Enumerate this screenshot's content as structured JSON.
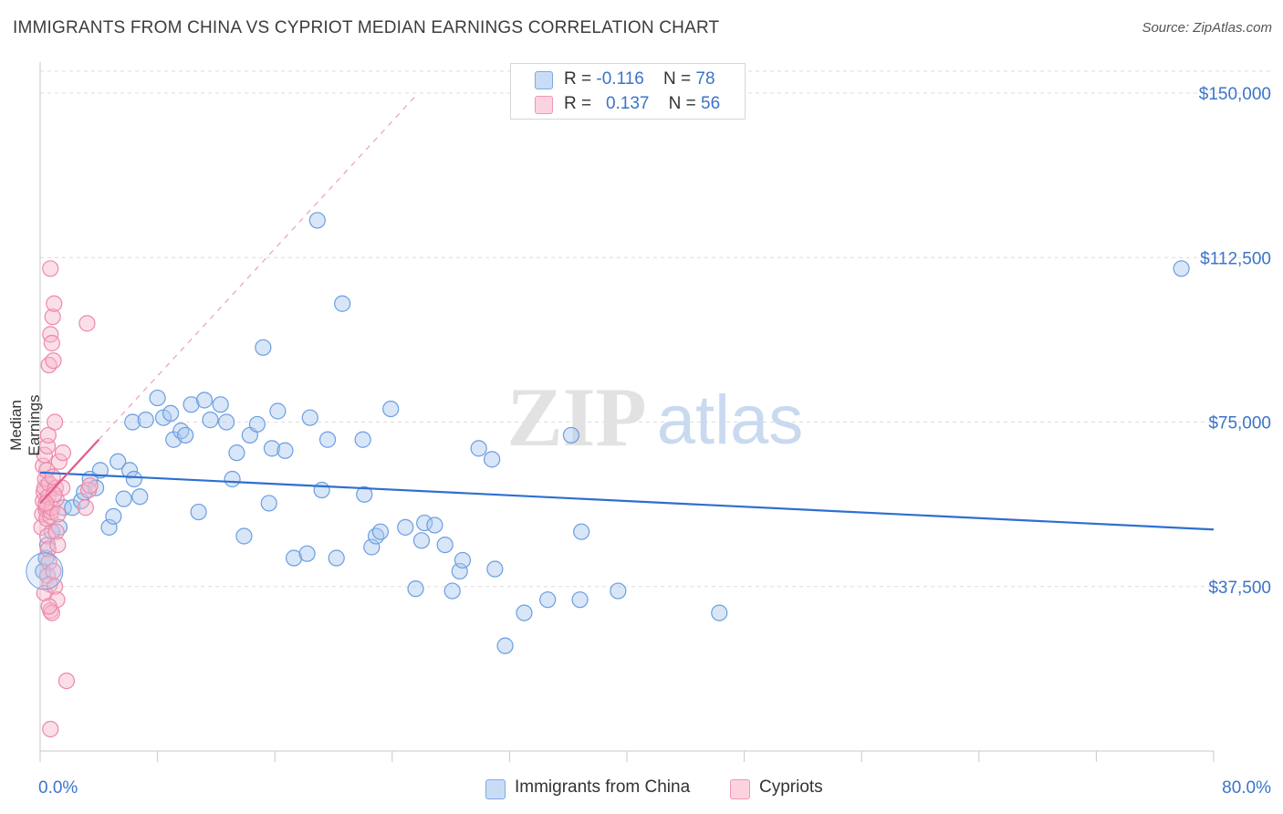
{
  "title": "IMMIGRANTS FROM CHINA VS CYPRIOT MEDIAN EARNINGS CORRELATION CHART",
  "source": "Source: ZipAtlas.com",
  "watermark": {
    "zip": "ZIP",
    "atlas": "atlas"
  },
  "legend": {
    "rows": [
      {
        "r_label": "R =",
        "r_value": "-0.116",
        "n_label": "N =",
        "n_value": "78",
        "color": "#a9c8f0"
      },
      {
        "r_label": "R =",
        "r_value": "0.137",
        "n_label": "N =",
        "n_value": "56",
        "color": "#f6b9cc"
      }
    ]
  },
  "bottom_legend": [
    {
      "label": "Immigrants from China",
      "color": "#a9c8f0"
    },
    {
      "label": "Cypriots",
      "color": "#f6b9cc"
    }
  ],
  "chart_data": {
    "type": "scatter",
    "title": "IMMIGRANTS FROM CHINA VS CYPRIOT MEDIAN EARNINGS CORRELATION CHART",
    "xlabel": "",
    "ylabel": "Median Earnings",
    "xlim": [
      0,
      80
    ],
    "ylim": [
      0,
      155000
    ],
    "x_tick_labels": [
      {
        "value": 0,
        "label": "0.0%"
      },
      {
        "value": 80,
        "label": "80.0%"
      }
    ],
    "y_ticks": [
      {
        "value": 37500,
        "label": "$37,500"
      },
      {
        "value": 75000,
        "label": "$75,000"
      },
      {
        "value": 112500,
        "label": "$112,500"
      },
      {
        "value": 150000,
        "label": "$150,000"
      }
    ],
    "series": [
      {
        "name": "Immigrants from China",
        "color": "#6a9ee0",
        "fill": "#a9c8f0",
        "trend": {
          "x": [
            0,
            80
          ],
          "y": [
            63500,
            50500
          ],
          "style": "solid",
          "color": "#2e6fd0"
        },
        "points": [
          [
            0.2,
            41000
          ],
          [
            0.4,
            44000
          ],
          [
            0.5,
            47000
          ],
          [
            0.8,
            50000
          ],
          [
            1.3,
            51000
          ],
          [
            1.6,
            55500
          ],
          [
            2.2,
            55500
          ],
          [
            2.8,
            57000
          ],
          [
            3.0,
            59000
          ],
          [
            3.4,
            62000
          ],
          [
            3.8,
            60000
          ],
          [
            4.1,
            64000
          ],
          [
            4.7,
            51000
          ],
          [
            5.0,
            53500
          ],
          [
            5.3,
            66000
          ],
          [
            5.7,
            57500
          ],
          [
            6.1,
            64000
          ],
          [
            6.4,
            62000
          ],
          [
            6.8,
            58000
          ],
          [
            6.3,
            75000
          ],
          [
            7.2,
            75500
          ],
          [
            8.0,
            80500
          ],
          [
            8.4,
            76000
          ],
          [
            8.9,
            77000
          ],
          [
            9.1,
            71000
          ],
          [
            9.6,
            73000
          ],
          [
            9.9,
            72000
          ],
          [
            10.3,
            79000
          ],
          [
            10.8,
            54500
          ],
          [
            11.2,
            80000
          ],
          [
            11.6,
            75500
          ],
          [
            12.3,
            79000
          ],
          [
            12.7,
            75000
          ],
          [
            13.1,
            62000
          ],
          [
            13.4,
            68000
          ],
          [
            13.9,
            49000
          ],
          [
            14.3,
            72000
          ],
          [
            14.8,
            74500
          ],
          [
            15.2,
            92000
          ],
          [
            15.6,
            56500
          ],
          [
            15.8,
            69000
          ],
          [
            16.2,
            77500
          ],
          [
            16.7,
            68500
          ],
          [
            17.3,
            44000
          ],
          [
            18.2,
            45000
          ],
          [
            18.4,
            76000
          ],
          [
            18.9,
            121000
          ],
          [
            19.2,
            59500
          ],
          [
            19.6,
            71000
          ],
          [
            20.2,
            44000
          ],
          [
            20.6,
            102000
          ],
          [
            22.0,
            71000
          ],
          [
            22.1,
            58500
          ],
          [
            22.6,
            46500
          ],
          [
            22.9,
            49000
          ],
          [
            23.2,
            50000
          ],
          [
            23.9,
            78000
          ],
          [
            24.9,
            51000
          ],
          [
            25.6,
            37000
          ],
          [
            26.0,
            48000
          ],
          [
            26.2,
            52000
          ],
          [
            26.9,
            51500
          ],
          [
            27.6,
            47000
          ],
          [
            28.1,
            36500
          ],
          [
            28.6,
            41000
          ],
          [
            28.8,
            43500
          ],
          [
            29.9,
            69000
          ],
          [
            30.8,
            66500
          ],
          [
            31.0,
            41500
          ],
          [
            31.7,
            24000
          ],
          [
            33.0,
            31500
          ],
          [
            34.6,
            34500
          ],
          [
            36.2,
            72000
          ],
          [
            36.9,
            50000
          ],
          [
            36.8,
            34500
          ],
          [
            39.4,
            36500
          ],
          [
            46.3,
            31500
          ],
          [
            77.8,
            110000
          ]
        ]
      },
      {
        "name": "Cypriots",
        "color": "#ee88a8",
        "fill": "#f6b9cc",
        "trend": {
          "x": [
            0,
            4.0
          ],
          "y": [
            56500,
            71000
          ],
          "style": "solid",
          "color": "#e35a88"
        },
        "trend_extension": {
          "x": [
            4.0,
            25.5
          ],
          "y": [
            71000,
            149000
          ],
          "style": "dashed",
          "color": "#eaa0b8"
        },
        "points": [
          [
            0.1,
            51000
          ],
          [
            0.15,
            54000
          ],
          [
            0.2,
            57000
          ],
          [
            0.25,
            59000
          ],
          [
            0.3,
            60000
          ],
          [
            0.35,
            62000
          ],
          [
            0.2,
            65000
          ],
          [
            0.3,
            67500
          ],
          [
            0.4,
            55000
          ],
          [
            0.45,
            53000
          ],
          [
            0.5,
            49000
          ],
          [
            0.55,
            46000
          ],
          [
            0.6,
            43000
          ],
          [
            0.5,
            40000
          ],
          [
            0.65,
            38000
          ],
          [
            0.3,
            36000
          ],
          [
            0.4,
            56000
          ],
          [
            0.55,
            58000
          ],
          [
            0.6,
            61000
          ],
          [
            0.7,
            53500
          ],
          [
            0.75,
            54500
          ],
          [
            0.8,
            55500
          ],
          [
            0.45,
            64000
          ],
          [
            0.5,
            69500
          ],
          [
            0.55,
            72000
          ],
          [
            0.6,
            88000
          ],
          [
            0.7,
            95000
          ],
          [
            0.8,
            93000
          ],
          [
            0.85,
            99000
          ],
          [
            0.9,
            89000
          ],
          [
            0.95,
            102000
          ],
          [
            1.0,
            75000
          ],
          [
            1.05,
            60000
          ],
          [
            1.1,
            57500
          ],
          [
            1.1,
            50000
          ],
          [
            1.2,
            47000
          ],
          [
            1.0,
            37500
          ],
          [
            1.15,
            34500
          ],
          [
            0.7,
            32000
          ],
          [
            0.8,
            31500
          ],
          [
            0.6,
            33000
          ],
          [
            1.3,
            66000
          ],
          [
            1.5,
            60000
          ],
          [
            1.55,
            68000
          ],
          [
            1.8,
            16000
          ],
          [
            3.2,
            97500
          ],
          [
            3.1,
            55500
          ],
          [
            3.3,
            59500
          ],
          [
            3.4,
            60500
          ],
          [
            0.7,
            110000
          ],
          [
            0.7,
            5000
          ],
          [
            0.9,
            41000
          ],
          [
            1.2,
            54000
          ],
          [
            0.95,
            58500
          ],
          [
            0.85,
            62500
          ],
          [
            0.4,
            56500
          ]
        ]
      }
    ]
  }
}
